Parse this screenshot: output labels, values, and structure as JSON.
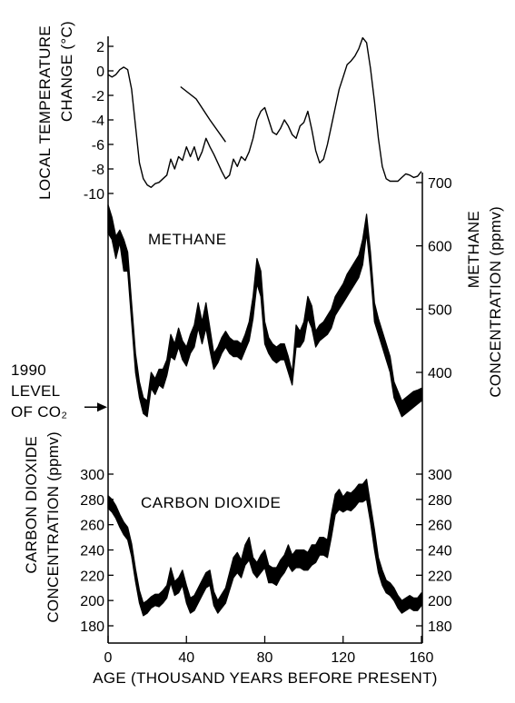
{
  "chart_data": [
    {
      "type": "line",
      "name": "temperature",
      "ylabel": "LOCAL TEMPERATURE CHANGE (°C)",
      "ylim": [
        -10,
        2
      ],
      "yticks": [
        "2",
        "0",
        "-2",
        "-4",
        "-6",
        "-8",
        "-10"
      ],
      "x": [
        0,
        2,
        4,
        6,
        8,
        10,
        12,
        14,
        16,
        18,
        20,
        22,
        24,
        26,
        28,
        30,
        32,
        34,
        36,
        38,
        40,
        42,
        44,
        46,
        48,
        50,
        52,
        54,
        56,
        58,
        60,
        62,
        64,
        66,
        68,
        70,
        72,
        74,
        76,
        78,
        80,
        82,
        84,
        86,
        88,
        90,
        92,
        94,
        96,
        98,
        100,
        102,
        104,
        106,
        108,
        110,
        112,
        114,
        116,
        118,
        120,
        122,
        124,
        126,
        128,
        130,
        132,
        134,
        136,
        138,
        140,
        142,
        144,
        146,
        148,
        150,
        152,
        154,
        156,
        158,
        160
      ],
      "values": [
        -0.3,
        -0.5,
        -0.3,
        0.1,
        0.3,
        0.1,
        -1.5,
        -4.5,
        -7.5,
        -8.8,
        -9.3,
        -9.5,
        -9.2,
        -9.1,
        -8.8,
        -8.5,
        -7.2,
        -8.0,
        -7.0,
        -7.3,
        -6.2,
        -7.0,
        -6.2,
        -7.3,
        -6.6,
        -5.5,
        -6.2,
        -6.8,
        -7.5,
        -8.2,
        -8.8,
        -8.5,
        -7.2,
        -7.8,
        -7.0,
        -7.3,
        -6.6,
        -5.5,
        -4.0,
        -3.3,
        -3.0,
        -4.0,
        -5.0,
        -5.2,
        -4.7,
        -4.0,
        -4.5,
        -5.2,
        -5.5,
        -4.5,
        -4.2,
        -3.3,
        -4.8,
        -6.5,
        -7.5,
        -7.2,
        -6.0,
        -4.5,
        -3.0,
        -1.5,
        -0.5,
        0.5,
        0.8,
        1.2,
        1.8,
        2.7,
        2.3,
        0.2,
        -2.5,
        -5.5,
        -7.8,
        -8.8,
        -9.0,
        -9.0,
        -9.0,
        -8.7,
        -8.4,
        -8.5,
        -8.7,
        -8.6,
        -8.2
      ],
      "extra_segment": {
        "x": [
          37,
          45,
          52,
          60
        ],
        "values": [
          -1.3,
          -2.3,
          -4.0,
          -5.8
        ]
      }
    },
    {
      "type": "area",
      "name": "methane",
      "series_label": "METHANE",
      "ylabel": "METHANE CONCENTRATION (ppmv)",
      "ylim": [
        350,
        700
      ],
      "yticks": [
        "700",
        "600",
        "500",
        "400"
      ],
      "x": [
        0,
        2,
        4,
        6,
        8,
        10,
        12,
        14,
        16,
        18,
        20,
        22,
        24,
        26,
        28,
        30,
        32,
        34,
        36,
        38,
        40,
        42,
        44,
        46,
        48,
        50,
        52,
        54,
        56,
        58,
        60,
        62,
        64,
        66,
        68,
        70,
        72,
        74,
        76,
        78,
        80,
        82,
        84,
        86,
        88,
        90,
        92,
        94,
        96,
        98,
        100,
        102,
        104,
        106,
        108,
        110,
        112,
        114,
        116,
        118,
        120,
        122,
        124,
        126,
        128,
        130,
        132,
        134,
        136,
        138,
        140,
        142,
        144,
        146,
        148,
        150,
        152,
        154,
        156,
        158,
        160
      ],
      "lower": [
        620,
        610,
        580,
        605,
        560,
        560,
        480,
        400,
        360,
        335,
        330,
        375,
        365,
        380,
        375,
        395,
        425,
        420,
        440,
        420,
        410,
        430,
        440,
        470,
        445,
        470,
        435,
        405,
        415,
        430,
        440,
        430,
        425,
        425,
        420,
        435,
        450,
        485,
        540,
        520,
        445,
        430,
        420,
        415,
        420,
        420,
        400,
        380,
        440,
        440,
        450,
        485,
        470,
        440,
        450,
        455,
        460,
        470,
        490,
        500,
        510,
        520,
        530,
        540,
        550,
        570,
        620,
        560,
        480,
        460,
        440,
        420,
        400,
        360,
        345,
        330,
        335,
        340,
        345,
        350,
        355
      ],
      "upper": [
        665,
        645,
        615,
        625,
        610,
        590,
        510,
        430,
        385,
        360,
        355,
        400,
        390,
        405,
        405,
        420,
        460,
        445,
        470,
        450,
        440,
        460,
        475,
        510,
        480,
        510,
        470,
        430,
        440,
        455,
        465,
        455,
        450,
        450,
        445,
        460,
        480,
        520,
        580,
        560,
        480,
        455,
        445,
        440,
        445,
        445,
        425,
        400,
        475,
        465,
        480,
        520,
        505,
        465,
        475,
        480,
        490,
        500,
        520,
        530,
        540,
        555,
        565,
        575,
        585,
        610,
        650,
        590,
        510,
        485,
        465,
        445,
        425,
        385,
        370,
        355,
        360,
        365,
        370,
        372,
        375
      ]
    },
    {
      "type": "area",
      "name": "carbon_dioxide",
      "series_label": "CARBON DIOXIDE",
      "ylabel": "CARBON DIOXIDE CONCENTRATION (ppmv)",
      "ylim": [
        170,
        305
      ],
      "yticks": [
        "300",
        "280",
        "260",
        "240",
        "220",
        "200",
        "180"
      ],
      "x": [
        0,
        2,
        4,
        6,
        8,
        10,
        12,
        14,
        16,
        18,
        20,
        22,
        24,
        26,
        28,
        30,
        32,
        34,
        36,
        38,
        40,
        42,
        44,
        46,
        48,
        50,
        52,
        54,
        56,
        58,
        60,
        62,
        64,
        66,
        68,
        70,
        72,
        74,
        76,
        78,
        80,
        82,
        84,
        86,
        88,
        90,
        92,
        94,
        96,
        98,
        100,
        102,
        104,
        106,
        108,
        110,
        112,
        114,
        116,
        118,
        120,
        122,
        124,
        126,
        128,
        130,
        132,
        134,
        136,
        138,
        140,
        142,
        144,
        146,
        148,
        150,
        152,
        154,
        156,
        158,
        160
      ],
      "lower": [
        273,
        270,
        265,
        258,
        252,
        248,
        235,
        215,
        198,
        188,
        190,
        194,
        196,
        195,
        198,
        202,
        214,
        204,
        206,
        212,
        198,
        190,
        192,
        198,
        204,
        210,
        212,
        196,
        190,
        194,
        198,
        208,
        218,
        222,
        218,
        228,
        232,
        222,
        218,
        222,
        226,
        214,
        214,
        212,
        218,
        222,
        228,
        223,
        226,
        226,
        224,
        224,
        228,
        230,
        236,
        236,
        234,
        250,
        268,
        272,
        270,
        272,
        271,
        274,
        278,
        278,
        280,
        262,
        240,
        222,
        212,
        206,
        204,
        200,
        194,
        190,
        192,
        194,
        192,
        192,
        196
      ],
      "upper": [
        283,
        280,
        275,
        268,
        262,
        258,
        245,
        225,
        208,
        198,
        200,
        203,
        205,
        205,
        208,
        212,
        226,
        215,
        218,
        224,
        212,
        202,
        204,
        210,
        216,
        222,
        224,
        207,
        200,
        205,
        210,
        222,
        234,
        238,
        232,
        244,
        250,
        234,
        230,
        236,
        240,
        228,
        226,
        226,
        232,
        236,
        244,
        236,
        240,
        240,
        240,
        238,
        244,
        244,
        250,
        250,
        248,
        268,
        284,
        288,
        282,
        286,
        285,
        288,
        292,
        292,
        296,
        276,
        256,
        234,
        224,
        216,
        214,
        210,
        204,
        200,
        202,
        204,
        202,
        202,
        206
      ]
    }
  ],
  "x_axis": {
    "label": "AGE (THOUSAND YEARS BEFORE PRESENT)",
    "xlim": [
      0,
      160
    ],
    "ticks": [
      "0",
      "40",
      "80",
      "120",
      "160"
    ]
  },
  "annotation": {
    "lines": [
      "1990",
      "LEVEL",
      "OF CO₂"
    ],
    "co2_value": 353
  },
  "colors": {
    "ink": "#000000",
    "background": "#ffffff"
  }
}
